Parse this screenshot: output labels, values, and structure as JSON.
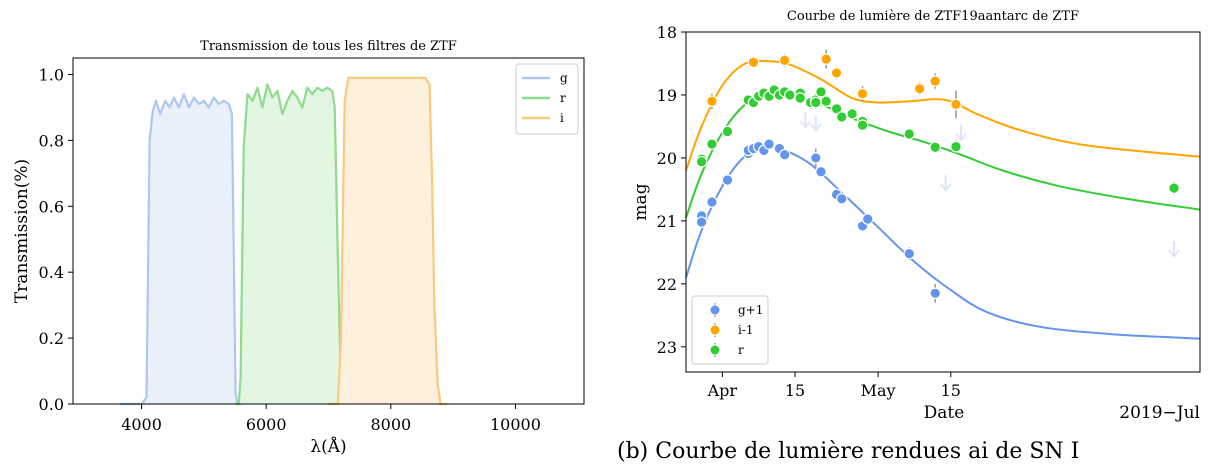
{
  "chart_data": [
    {
      "type": "area",
      "title": "Transmission de tous les filtres de ZTF",
      "xlabel": "λ(Å)",
      "ylabel": "Transmission(%)",
      "xlim": [
        2900,
        11100
      ],
      "ylim": [
        0,
        1.05
      ],
      "xticks": [
        4000,
        6000,
        8000,
        10000
      ],
      "xtick_labels": [
        "4000",
        "6000",
        "8000",
        "10000"
      ],
      "yticks": [
        0,
        0.2,
        0.4,
        0.6,
        0.8,
        1.0
      ],
      "ytick_labels": [
        "0.0",
        "0.2",
        "0.4",
        "0.6",
        "0.8",
        "1.0"
      ],
      "legend_position": "top-right",
      "series": [
        {
          "name": "g",
          "color": "#aec7f0",
          "fill": "#eaf1fb",
          "x": [
            3650,
            3900,
            4000,
            4080,
            4130,
            4180,
            4230,
            4300,
            4380,
            4450,
            4520,
            4600,
            4680,
            4760,
            4840,
            4920,
            5000,
            5080,
            5160,
            5240,
            5320,
            5400,
            5450,
            5480,
            5510,
            5540,
            5600
          ],
          "y": [
            0.0,
            0.0,
            0.0,
            0.02,
            0.8,
            0.89,
            0.92,
            0.88,
            0.92,
            0.9,
            0.93,
            0.9,
            0.94,
            0.9,
            0.93,
            0.91,
            0.92,
            0.9,
            0.93,
            0.91,
            0.92,
            0.91,
            0.88,
            0.45,
            0.03,
            0.0,
            0.0
          ]
        },
        {
          "name": "r",
          "color": "#8edb8e",
          "fill": "#e2f6e2",
          "x": [
            5500,
            5560,
            5590,
            5640,
            5700,
            5780,
            5860,
            5940,
            6020,
            6100,
            6180,
            6260,
            6340,
            6420,
            6500,
            6580,
            6660,
            6740,
            6820,
            6900,
            6980,
            7060,
            7100,
            7150,
            7200,
            7260
          ],
          "y": [
            0.0,
            0.0,
            0.08,
            0.78,
            0.94,
            0.92,
            0.96,
            0.9,
            0.97,
            0.93,
            0.95,
            0.88,
            0.92,
            0.95,
            0.93,
            0.9,
            0.96,
            0.94,
            0.96,
            0.95,
            0.96,
            0.95,
            0.9,
            0.45,
            0.05,
            0.0
          ]
        },
        {
          "name": "i",
          "color": "#f7ca7e",
          "fill": "#fdf1de",
          "x": [
            7000,
            7150,
            7200,
            7260,
            7320,
            7400,
            7600,
            7800,
            8000,
            8200,
            8400,
            8550,
            8620,
            8660,
            8700,
            8750,
            8800,
            8900
          ],
          "y": [
            0.0,
            0.0,
            0.2,
            0.92,
            0.99,
            0.99,
            0.99,
            0.99,
            0.99,
            0.99,
            0.99,
            0.99,
            0.97,
            0.7,
            0.3,
            0.06,
            0.0,
            0.0
          ]
        }
      ]
    },
    {
      "type": "scatter",
      "title": "Courbe de lumière de ZTF19aantarc de ZTF",
      "xlabel": "Date",
      "ylabel": "mag",
      "corner_label": "2019−Jul",
      "x_unit": "day",
      "xlim": [
        "2019-03-25",
        "2019-07-02"
      ],
      "ylim": [
        23.4,
        18.0
      ],
      "y_inverted": true,
      "xticks": [
        "2019-04-01",
        "2019-04-15",
        "2019-05-01",
        "2019-05-15"
      ],
      "xtick_labels": [
        "Apr",
        "15",
        "May",
        "15"
      ],
      "yticks": [
        18,
        19,
        20,
        21,
        22,
        23
      ],
      "ytick_labels": [
        "18",
        "19",
        "20",
        "21",
        "22",
        "23"
      ],
      "legend_position": "lower-left",
      "series": [
        {
          "name": "g+1",
          "color": "#6495ed",
          "points": [
            {
              "x": "2019-03-28",
              "y": 20.92
            },
            {
              "x": "2019-03-28",
              "y": 21.02
            },
            {
              "x": "2019-03-30",
              "y": 20.7
            },
            {
              "x": "2019-04-02",
              "y": 20.35
            },
            {
              "x": "2019-04-06",
              "y": 19.93
            },
            {
              "x": "2019-04-06",
              "y": 19.88
            },
            {
              "x": "2019-04-07",
              "y": 19.85
            },
            {
              "x": "2019-04-08",
              "y": 19.82
            },
            {
              "x": "2019-04-09",
              "y": 19.88
            },
            {
              "x": "2019-04-10",
              "y": 19.78
            },
            {
              "x": "2019-04-12",
              "y": 19.85
            },
            {
              "x": "2019-04-13",
              "y": 19.95
            },
            {
              "x": "2019-04-19",
              "y": 20.0
            },
            {
              "x": "2019-04-20",
              "y": 20.22
            },
            {
              "x": "2019-04-23",
              "y": 20.58
            },
            {
              "x": "2019-04-24",
              "y": 20.65
            },
            {
              "x": "2019-04-28",
              "y": 21.08
            },
            {
              "x": "2019-04-29",
              "y": 20.97
            },
            {
              "x": "2019-05-07",
              "y": 21.52
            },
            {
              "x": "2019-05-12",
              "y": 22.15
            }
          ],
          "error": [
            0.08,
            0.08,
            0.06,
            0.05,
            0.05,
            0.04,
            0.04,
            0.04,
            0.04,
            0.04,
            0.04,
            0.04,
            0.15,
            0.08,
            0.06,
            0.06,
            0.08,
            0.08,
            0.1,
            0.15
          ],
          "upper_limits": [
            {
              "x": "2019-04-17",
              "y": 19.4
            },
            {
              "x": "2019-04-19",
              "y": 19.45
            },
            {
              "x": "2019-05-14",
              "y": 20.4
            },
            {
              "x": "2019-05-17",
              "y": 19.6
            },
            {
              "x": "2019-06-27",
              "y": 21.45
            }
          ],
          "model": [
            {
              "x": "2019-03-25",
              "y": 21.9
            },
            {
              "x": "2019-03-28",
              "y": 21.15
            },
            {
              "x": "2019-04-01",
              "y": 20.45
            },
            {
              "x": "2019-04-05",
              "y": 20.0
            },
            {
              "x": "2019-04-09",
              "y": 19.83
            },
            {
              "x": "2019-04-13",
              "y": 19.88
            },
            {
              "x": "2019-04-18",
              "y": 20.1
            },
            {
              "x": "2019-04-24",
              "y": 20.55
            },
            {
              "x": "2019-05-01",
              "y": 21.1
            },
            {
              "x": "2019-05-08",
              "y": 21.65
            },
            {
              "x": "2019-05-15",
              "y": 22.1
            },
            {
              "x": "2019-05-22",
              "y": 22.45
            },
            {
              "x": "2019-06-01",
              "y": 22.68
            },
            {
              "x": "2019-06-15",
              "y": 22.8
            },
            {
              "x": "2019-07-02",
              "y": 22.87
            }
          ]
        },
        {
          "name": "i-1",
          "color": "#ffa500",
          "points": [
            {
              "x": "2019-03-30",
              "y": 19.1
            },
            {
              "x": "2019-04-07",
              "y": 18.48
            },
            {
              "x": "2019-04-13",
              "y": 18.45
            },
            {
              "x": "2019-04-21",
              "y": 18.43
            },
            {
              "x": "2019-04-23",
              "y": 18.65
            },
            {
              "x": "2019-04-28",
              "y": 18.98
            },
            {
              "x": "2019-05-09",
              "y": 18.9
            },
            {
              "x": "2019-05-12",
              "y": 18.78
            },
            {
              "x": "2019-05-16",
              "y": 19.15
            }
          ],
          "error": [
            0.12,
            0.06,
            0.1,
            0.15,
            0.1,
            0.12,
            0.1,
            0.12,
            0.22
          ],
          "model": [
            {
              "x": "2019-03-25",
              "y": 20.2
            },
            {
              "x": "2019-03-28",
              "y": 19.5
            },
            {
              "x": "2019-04-01",
              "y": 18.85
            },
            {
              "x": "2019-04-05",
              "y": 18.52
            },
            {
              "x": "2019-04-09",
              "y": 18.46
            },
            {
              "x": "2019-04-14",
              "y": 18.52
            },
            {
              "x": "2019-04-20",
              "y": 18.75
            },
            {
              "x": "2019-04-26",
              "y": 19.05
            },
            {
              "x": "2019-05-01",
              "y": 19.12
            },
            {
              "x": "2019-05-07",
              "y": 19.1
            },
            {
              "x": "2019-05-14",
              "y": 19.08
            },
            {
              "x": "2019-05-20",
              "y": 19.3
            },
            {
              "x": "2019-05-28",
              "y": 19.55
            },
            {
              "x": "2019-06-10",
              "y": 19.8
            },
            {
              "x": "2019-07-02",
              "y": 19.98
            }
          ]
        },
        {
          "name": "r",
          "color": "#32cd32",
          "points": [
            {
              "x": "2019-03-28",
              "y": 20.02
            },
            {
              "x": "2019-03-28",
              "y": 20.06
            },
            {
              "x": "2019-03-30",
              "y": 19.78
            },
            {
              "x": "2019-04-02",
              "y": 19.58
            },
            {
              "x": "2019-04-06",
              "y": 19.08
            },
            {
              "x": "2019-04-07",
              "y": 19.12
            },
            {
              "x": "2019-04-08",
              "y": 19.02
            },
            {
              "x": "2019-04-09",
              "y": 18.97
            },
            {
              "x": "2019-04-10",
              "y": 19.02
            },
            {
              "x": "2019-04-11",
              "y": 18.92
            },
            {
              "x": "2019-04-12",
              "y": 19.0
            },
            {
              "x": "2019-04-13",
              "y": 18.95
            },
            {
              "x": "2019-04-14",
              "y": 19.0
            },
            {
              "x": "2019-04-16",
              "y": 18.97
            },
            {
              "x": "2019-04-16",
              "y": 19.05
            },
            {
              "x": "2019-04-18",
              "y": 19.12
            },
            {
              "x": "2019-04-19",
              "y": 19.08
            },
            {
              "x": "2019-04-19",
              "y": 19.12
            },
            {
              "x": "2019-04-20",
              "y": 18.95
            },
            {
              "x": "2019-04-21",
              "y": 19.1
            },
            {
              "x": "2019-04-23",
              "y": 19.22
            },
            {
              "x": "2019-04-24",
              "y": 19.35
            },
            {
              "x": "2019-04-26",
              "y": 19.3
            },
            {
              "x": "2019-04-28",
              "y": 19.42
            },
            {
              "x": "2019-04-28",
              "y": 19.48
            },
            {
              "x": "2019-05-07",
              "y": 19.62
            },
            {
              "x": "2019-05-12",
              "y": 19.83
            },
            {
              "x": "2019-05-16",
              "y": 19.82
            },
            {
              "x": "2019-06-27",
              "y": 20.48
            }
          ],
          "error": [
            0.06,
            0.06,
            0.05,
            0.05,
            0.04,
            0.04,
            0.04,
            0.04,
            0.04,
            0.04,
            0.04,
            0.04,
            0.04,
            0.05,
            0.05,
            0.1,
            0.1,
            0.1,
            0.05,
            0.05,
            0.06,
            0.06,
            0.06,
            0.06,
            0.06,
            0.06,
            0.06,
            0.1,
            0.1
          ],
          "model": [
            {
              "x": "2019-03-25",
              "y": 20.95
            },
            {
              "x": "2019-03-28",
              "y": 20.25
            },
            {
              "x": "2019-04-01",
              "y": 19.6
            },
            {
              "x": "2019-04-05",
              "y": 19.18
            },
            {
              "x": "2019-04-09",
              "y": 19.0
            },
            {
              "x": "2019-04-14",
              "y": 19.0
            },
            {
              "x": "2019-04-20",
              "y": 19.15
            },
            {
              "x": "2019-04-26",
              "y": 19.37
            },
            {
              "x": "2019-05-03",
              "y": 19.58
            },
            {
              "x": "2019-05-10",
              "y": 19.75
            },
            {
              "x": "2019-05-17",
              "y": 19.95
            },
            {
              "x": "2019-05-25",
              "y": 20.2
            },
            {
              "x": "2019-06-05",
              "y": 20.45
            },
            {
              "x": "2019-06-18",
              "y": 20.65
            },
            {
              "x": "2019-07-02",
              "y": 20.82
            }
          ]
        }
      ]
    }
  ],
  "caption_fragment": "(b) Courbe de lumière rendues ai de SN I"
}
